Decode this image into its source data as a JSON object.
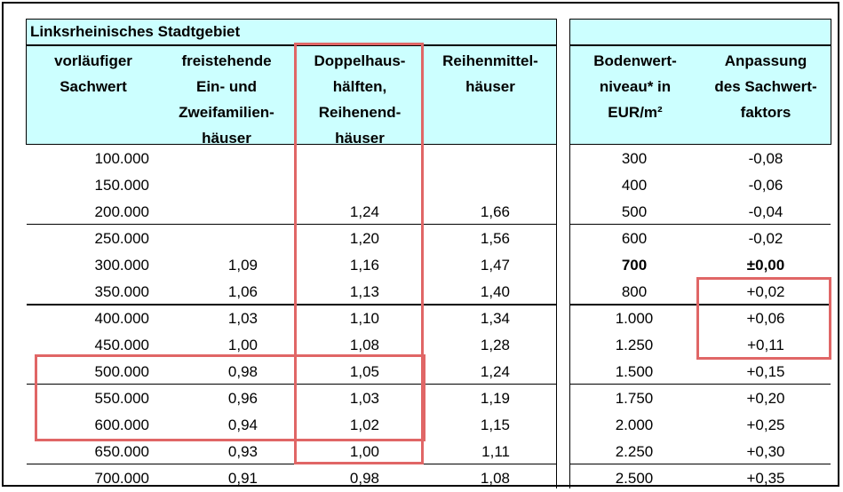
{
  "table": {
    "title": "Linksrheinisches Stadtgebiet",
    "headers": {
      "sachwert": [
        "vorläufiger",
        "Sachwert"
      ],
      "freistehende": [
        "freistehende",
        "Ein- und",
        "Zweifamilien-",
        "häuser"
      ],
      "doppelhaus": [
        "Doppelhaus-",
        "hälften,",
        "Reihenend-",
        "häuser"
      ],
      "reihenmittel": [
        "Reihenmittel-",
        "häuser"
      ],
      "bodenwert": [
        "Bodenwert-",
        "niveau* in",
        "EUR/m²"
      ],
      "anpassung": [
        "Anpassung",
        "des Sachwert-",
        "faktors"
      ]
    },
    "rows": [
      {
        "sachwert": "100.000",
        "freistehende": "",
        "doppelhaus": "",
        "reihenmittel": "",
        "bodenwert": "300",
        "anpassung": "-0,08"
      },
      {
        "sachwert": "150.000",
        "freistehende": "",
        "doppelhaus": "",
        "reihenmittel": "",
        "bodenwert": "400",
        "anpassung": "-0,06"
      },
      {
        "sachwert": "200.000",
        "freistehende": "",
        "doppelhaus": "1,24",
        "reihenmittel": "1,66",
        "bodenwert": "500",
        "anpassung": "-0,04"
      },
      {
        "sachwert": "250.000",
        "freistehende": "",
        "doppelhaus": "1,20",
        "reihenmittel": "1,56",
        "bodenwert": "600",
        "anpassung": "-0,02"
      },
      {
        "sachwert": "300.000",
        "freistehende": "1,09",
        "doppelhaus": "1,16",
        "reihenmittel": "1,47",
        "bodenwert": "700",
        "anpassung": "±0,00"
      },
      {
        "sachwert": "350.000",
        "freistehende": "1,06",
        "doppelhaus": "1,13",
        "reihenmittel": "1,40",
        "bodenwert": "800",
        "anpassung": "+0,02"
      },
      {
        "sachwert": "400.000",
        "freistehende": "1,03",
        "doppelhaus": "1,10",
        "reihenmittel": "1,34",
        "bodenwert": "1.000",
        "anpassung": "+0,06"
      },
      {
        "sachwert": "450.000",
        "freistehende": "1,00",
        "doppelhaus": "1,08",
        "reihenmittel": "1,28",
        "bodenwert": "1.250",
        "anpassung": "+0,11"
      },
      {
        "sachwert": "500.000",
        "freistehende": "0,98",
        "doppelhaus": "1,05",
        "reihenmittel": "1,24",
        "bodenwert": "1.500",
        "anpassung": "+0,15"
      },
      {
        "sachwert": "550.000",
        "freistehende": "0,96",
        "doppelhaus": "1,03",
        "reihenmittel": "1,19",
        "bodenwert": "1.750",
        "anpassung": "+0,20"
      },
      {
        "sachwert": "600.000",
        "freistehende": "0,94",
        "doppelhaus": "1,02",
        "reihenmittel": "1,15",
        "bodenwert": "2.000",
        "anpassung": "+0,25"
      },
      {
        "sachwert": "650.000",
        "freistehende": "0,93",
        "doppelhaus": "1,00",
        "reihenmittel": "1,11",
        "bodenwert": "2.250",
        "anpassung": "+0,30"
      },
      {
        "sachwert": "700.000",
        "freistehende": "0,91",
        "doppelhaus": "0,98",
        "reihenmittel": "1,08",
        "bodenwert": "2.500",
        "anpassung": "+0,35"
      }
    ]
  },
  "colors": {
    "header_bg": "#ccffff",
    "highlight": "#e06666"
  }
}
